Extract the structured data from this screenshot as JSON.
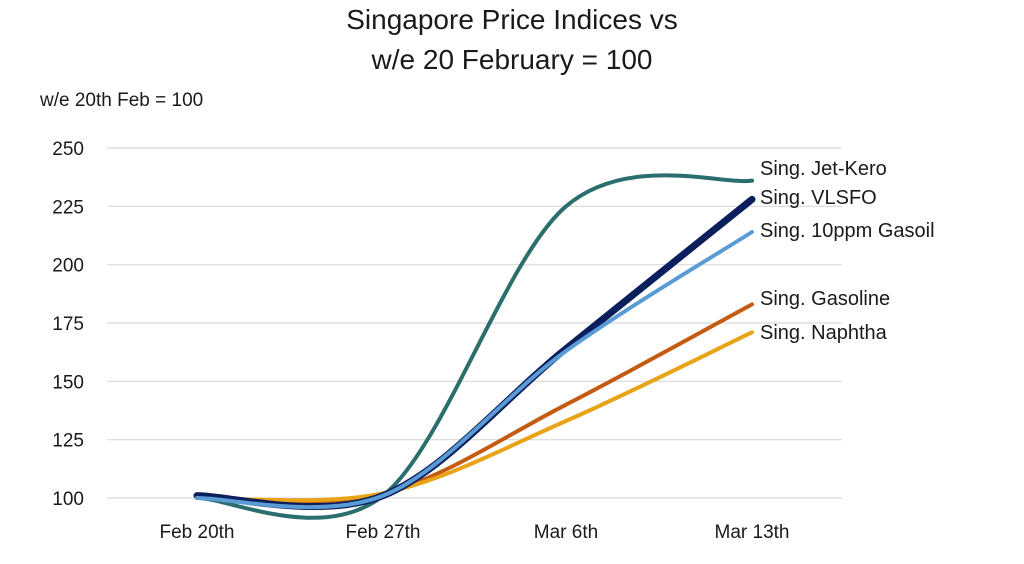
{
  "chart_data": {
    "type": "line",
    "title_lines": [
      "Singapore Price Indices vs",
      "w/e 20 February = 100"
    ],
    "ylabel": "w/e 20th Feb = 100",
    "xlabel": "",
    "categories": [
      "Feb 20th",
      "Feb 27th",
      "Mar 6th",
      "Mar 13th"
    ],
    "ylim": [
      100,
      250
    ],
    "yticks": [
      100,
      125,
      150,
      175,
      200,
      225,
      250
    ],
    "grid": true,
    "legend": "direct labels at line ends (right)",
    "series": [
      {
        "name": "Sing. Jet-Kero",
        "values": [
          100,
          101,
          225,
          236
        ],
        "color": "#2A6E6E"
      },
      {
        "name": "Sing. VLSFO",
        "values": [
          101,
          101,
          164,
          228
        ],
        "color": "#0B1F5C"
      },
      {
        "name": "Sing. 10ppm Gasoil",
        "values": [
          100,
          101,
          163,
          214
        ],
        "color": "#5B9BD5"
      },
      {
        "name": "Sing. Gasoline",
        "values": [
          100,
          102,
          140,
          183
        ],
        "color": "#C55A11"
      },
      {
        "name": "Sing. Naphtha",
        "values": [
          100,
          102,
          133,
          171
        ],
        "color": "#E8A317"
      }
    ]
  }
}
